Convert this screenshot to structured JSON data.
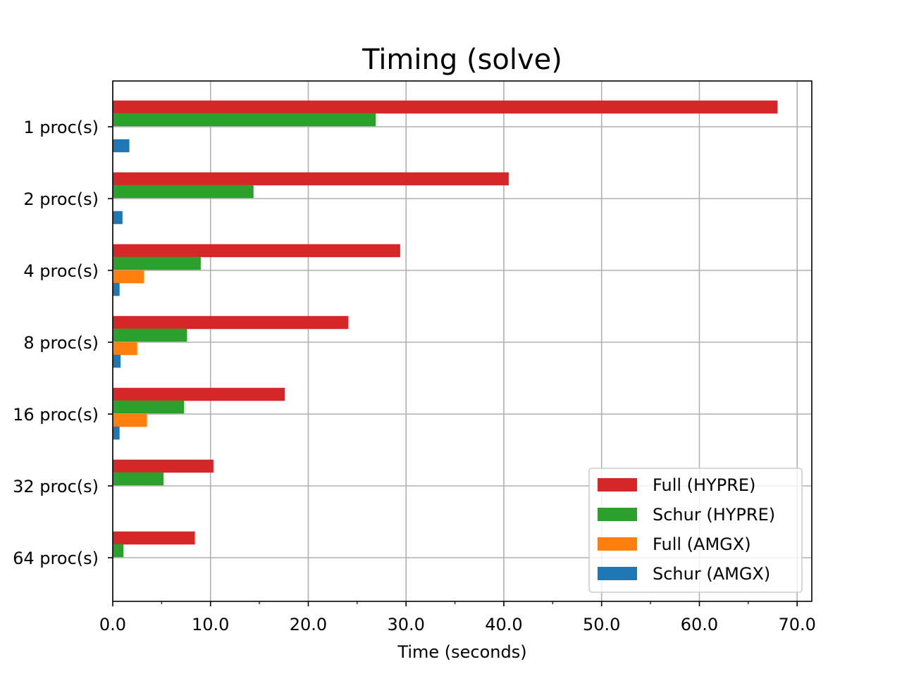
{
  "chart_data": {
    "type": "bar",
    "orientation": "horizontal",
    "title": "Timing (solve)",
    "xlabel": "Time (seconds)",
    "ylabel": "",
    "xlim": [
      0,
      71.5
    ],
    "x_ticks": [
      0,
      10,
      20,
      30,
      40,
      50,
      60,
      70
    ],
    "x_tick_labels": [
      "0.0",
      "10.0",
      "20.0",
      "30.0",
      "40.0",
      "50.0",
      "60.0",
      "70.0"
    ],
    "grid": true,
    "legend_position": "lower-right",
    "categories": [
      "1 proc(s)",
      "2 proc(s)",
      "4 proc(s)",
      "8 proc(s)",
      "16 proc(s)",
      "32 proc(s)",
      "64 proc(s)"
    ],
    "series": [
      {
        "name": "Full (HYPRE)",
        "color": "#d62728",
        "values": [
          68.0,
          40.5,
          29.4,
          24.1,
          17.6,
          10.3,
          8.4
        ]
      },
      {
        "name": "Schur (HYPRE)",
        "color": "#2ca02c",
        "values": [
          26.9,
          14.4,
          9.0,
          7.6,
          7.3,
          5.2,
          1.1
        ]
      },
      {
        "name": "Full (AMGX)",
        "color": "#ff7f0e",
        "values": [
          null,
          null,
          3.2,
          2.5,
          3.5,
          null,
          null
        ]
      },
      {
        "name": "Schur (AMGX)",
        "color": "#1f77b4",
        "values": [
          1.7,
          1.0,
          0.7,
          0.8,
          0.7,
          null,
          null
        ]
      }
    ]
  }
}
